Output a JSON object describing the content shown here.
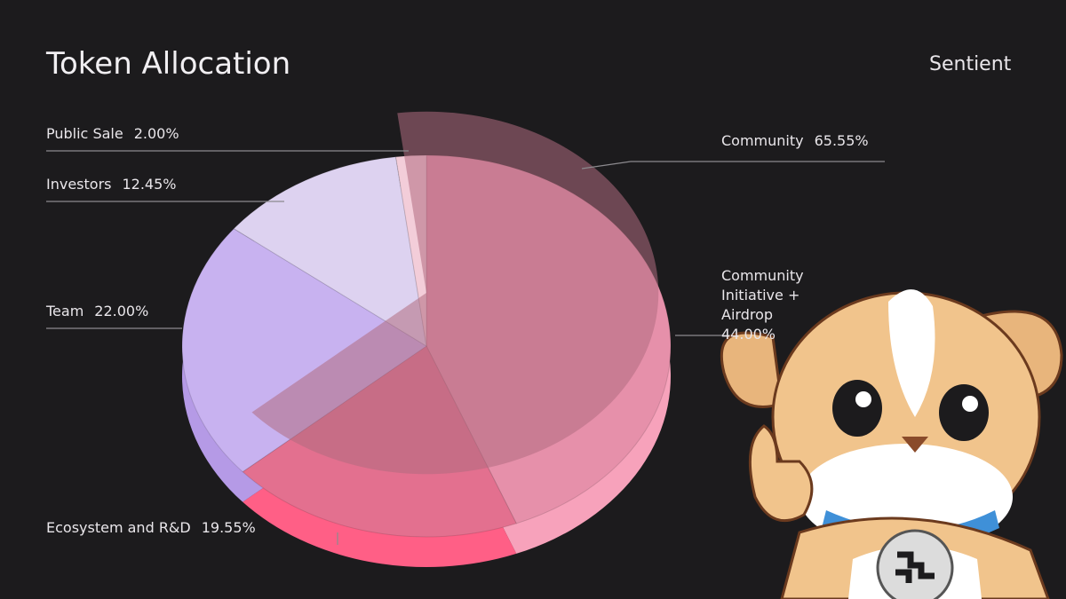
{
  "chart_data": {
    "type": "pie",
    "title": "Token Allocation",
    "brand": "Sentient",
    "categories": [
      "Community Initiative + Airdrop",
      "Ecosystem and R&D",
      "Team",
      "Investors",
      "Public Sale"
    ],
    "values": [
      44.0,
      19.55,
      22.0,
      12.45,
      2.0
    ],
    "value_labels": [
      "44.00%",
      "19.55%",
      "22.00%",
      "12.45%",
      "2.00%"
    ],
    "colors": [
      "#e690aa",
      "#e3708f",
      "#c8b2f0",
      "#ddd2f0",
      "#f3cdd9"
    ],
    "depth_colors": [
      "#f7a2bb",
      "#ff5f86",
      "#b59ae6",
      "#c9bbe6",
      "#e8b0c2"
    ],
    "groups": [
      {
        "name": "Community",
        "value": 65.55,
        "value_label": "65.55%",
        "color": "#b06c80"
      }
    ]
  }
}
